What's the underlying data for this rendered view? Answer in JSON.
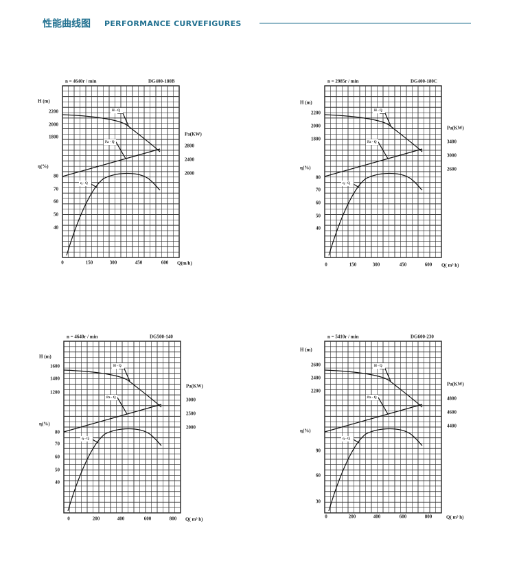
{
  "header": {
    "title_cn": "性能曲线图",
    "title_en": "PERFORMANCE CURVEFIGURES"
  },
  "figures": [
    {
      "speed": "n = 4640r / min",
      "model": "DG400-180B",
      "h_label": "H (m)",
      "h_ticks": [
        2200,
        2000,
        1800
      ],
      "eta_label": "η(%)",
      "eta_ticks": [
        80,
        70,
        60,
        50,
        40
      ],
      "pa_label": "Pa(KW)",
      "pa_ticks": [
        2800,
        2400,
        2000
      ],
      "q_ticks": [
        0,
        150,
        300,
        450,
        600
      ],
      "q_label": "Q(m/h)",
      "curves": {
        "h_q": "H - Q",
        "pa_q": "Pa - Q",
        "eta_q": "η - Q"
      }
    },
    {
      "speed": "n = 2985r / min",
      "model": "DG400-180C",
      "h_label": "H (m)",
      "h_ticks": [
        2200,
        2000,
        1800
      ],
      "eta_label": "η(%)",
      "eta_ticks": [
        80,
        70,
        60,
        50,
        40
      ],
      "pa_label": "Pa(KW)",
      "pa_ticks": [
        3400,
        3000,
        2600
      ],
      "q_ticks": [
        0,
        150,
        300,
        450,
        600
      ],
      "q_label": "Q( m³ h)",
      "curves": {
        "h_q": "H - Q",
        "pa_q": "Pa - Q",
        "eta_q": "η - Q"
      }
    },
    {
      "speed": "n = 4640r / min",
      "model": "DG500-140",
      "h_label": "H (m)",
      "h_ticks": [
        1600,
        1400,
        1200
      ],
      "eta_label": "η(%)",
      "eta_ticks": [
        80,
        70,
        60,
        50,
        40
      ],
      "pa_label": "Pa(KW)",
      "pa_ticks": [
        3000,
        2500,
        2000
      ],
      "q_ticks": [
        0,
        200,
        400,
        600,
        800
      ],
      "q_label": "Q( m³ h)",
      "curves": {
        "h_q": "H - Q",
        "pa_q": "Pa - Q",
        "eta_q": "η - Q"
      }
    },
    {
      "speed": "n = 5410r / min",
      "model": "DG600-230",
      "h_label": "H (m)",
      "h_ticks": [
        2600,
        2400,
        2200
      ],
      "eta_label": "η(%)",
      "eta_ticks": [
        90,
        60,
        30
      ],
      "pa_label": "Pa(KW)",
      "pa_ticks": [
        4800,
        4600,
        4400
      ],
      "q_ticks": [
        0,
        200,
        400,
        600,
        800
      ],
      "q_label": "Q( m³ h)",
      "curves": {
        "h_q": "H - Q",
        "pa_q": "Pa - Q",
        "eta_q": "η - Q"
      }
    }
  ]
}
